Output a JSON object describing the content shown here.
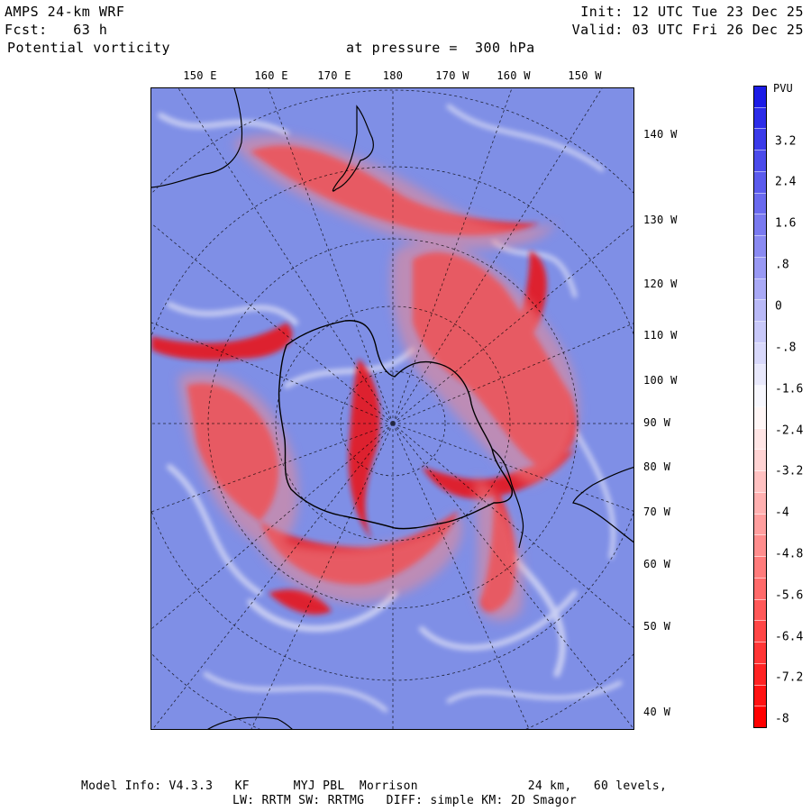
{
  "header": {
    "model": "AMPS 24-km WRF",
    "forecast": "Fcst:   63 h",
    "field": "Potential vorticity",
    "level": "at pressure =  300 hPa",
    "init": "Init: 12 UTC Tue 23 Dec 25",
    "valid": "Valid: 03 UTC Fri 26 Dec 25"
  },
  "top_lon_labels": [
    "150 E",
    "160 E",
    "170 E",
    "180",
    "170 W",
    "160 W",
    "150 W"
  ],
  "right_lon_labels": [
    "140 W",
    "130 W",
    "120 W",
    "110 W",
    "100 W",
    "90 W",
    "80 W",
    "70 W",
    "60 W",
    "50 W",
    "40 W"
  ],
  "colorbar": {
    "title": "PVU",
    "labels": [
      "3.2",
      "2.4",
      "1.6",
      ".8",
      "0",
      "-.8",
      "-1.6",
      "-2.4",
      "-3.2",
      "-4",
      "-4.8",
      "-5.6",
      "-6.4",
      "-7.2",
      "-8"
    ],
    "top_color": "#1c1ce6",
    "mid_color": "#ffffff",
    "bottom_color": "#ff0000"
  },
  "map_colors": {
    "background": "#7f8fe6",
    "high_pv": "#e8141c",
    "land_outline": "#000000"
  },
  "footer": {
    "line1": "Model Info: V4.3.3   KF      MYJ PBL  Morrison               24 km,   60 levels,",
    "line2": "LW: RRTM SW: RRTMG   DIFF: simple KM: 2D Smagor"
  }
}
